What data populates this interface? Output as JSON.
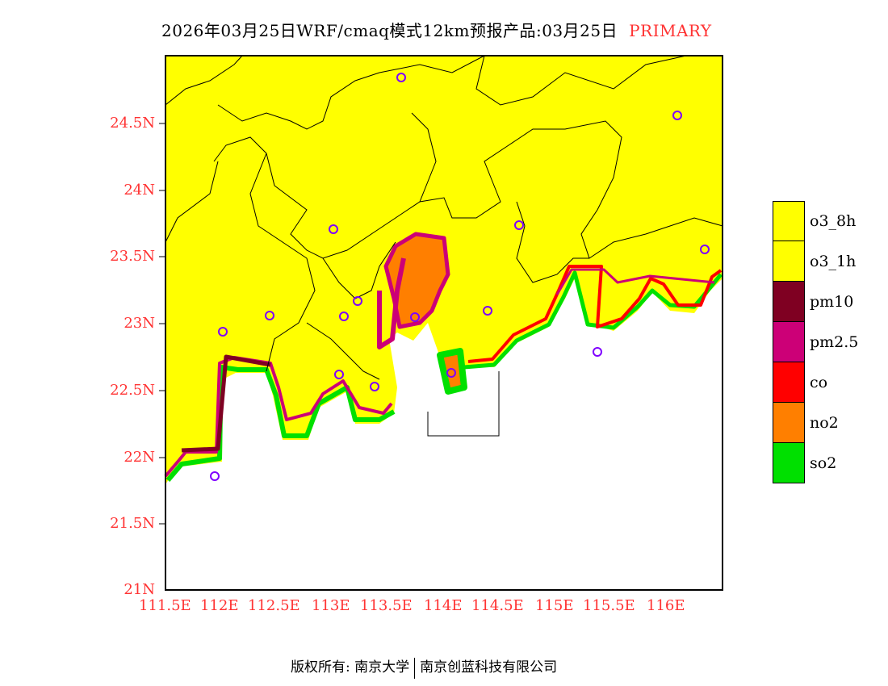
{
  "title": {
    "main": "2026年03月25日WRF/cmaq模式12km预报产品:03月25日",
    "label": "PRIMARY"
  },
  "axes": {
    "y": [
      "24.5N",
      "24N",
      "23.5N",
      "23N",
      "22.5N",
      "22N",
      "21.5N",
      "21N"
    ],
    "x": [
      "111.5E",
      "112E",
      "112.5E",
      "113E",
      "113.5E",
      "114E",
      "114.5E",
      "115E",
      "115.5E",
      "116E"
    ]
  },
  "legend": [
    {
      "label": "o3_8h",
      "color": "#ffff00"
    },
    {
      "label": "o3_1h",
      "color": "#ffff00"
    },
    {
      "label": "pm10",
      "color": "#7f0022"
    },
    {
      "label": "pm2.5",
      "color": "#cc0077"
    },
    {
      "label": "co",
      "color": "#ff0000"
    },
    {
      "label": "no2",
      "color": "#ff7f00"
    },
    {
      "label": "so2",
      "color": "#00e000"
    }
  ],
  "footer": {
    "left": "版权所有: 南京大学",
    "right": "南京创蓝科技有限公司"
  }
}
